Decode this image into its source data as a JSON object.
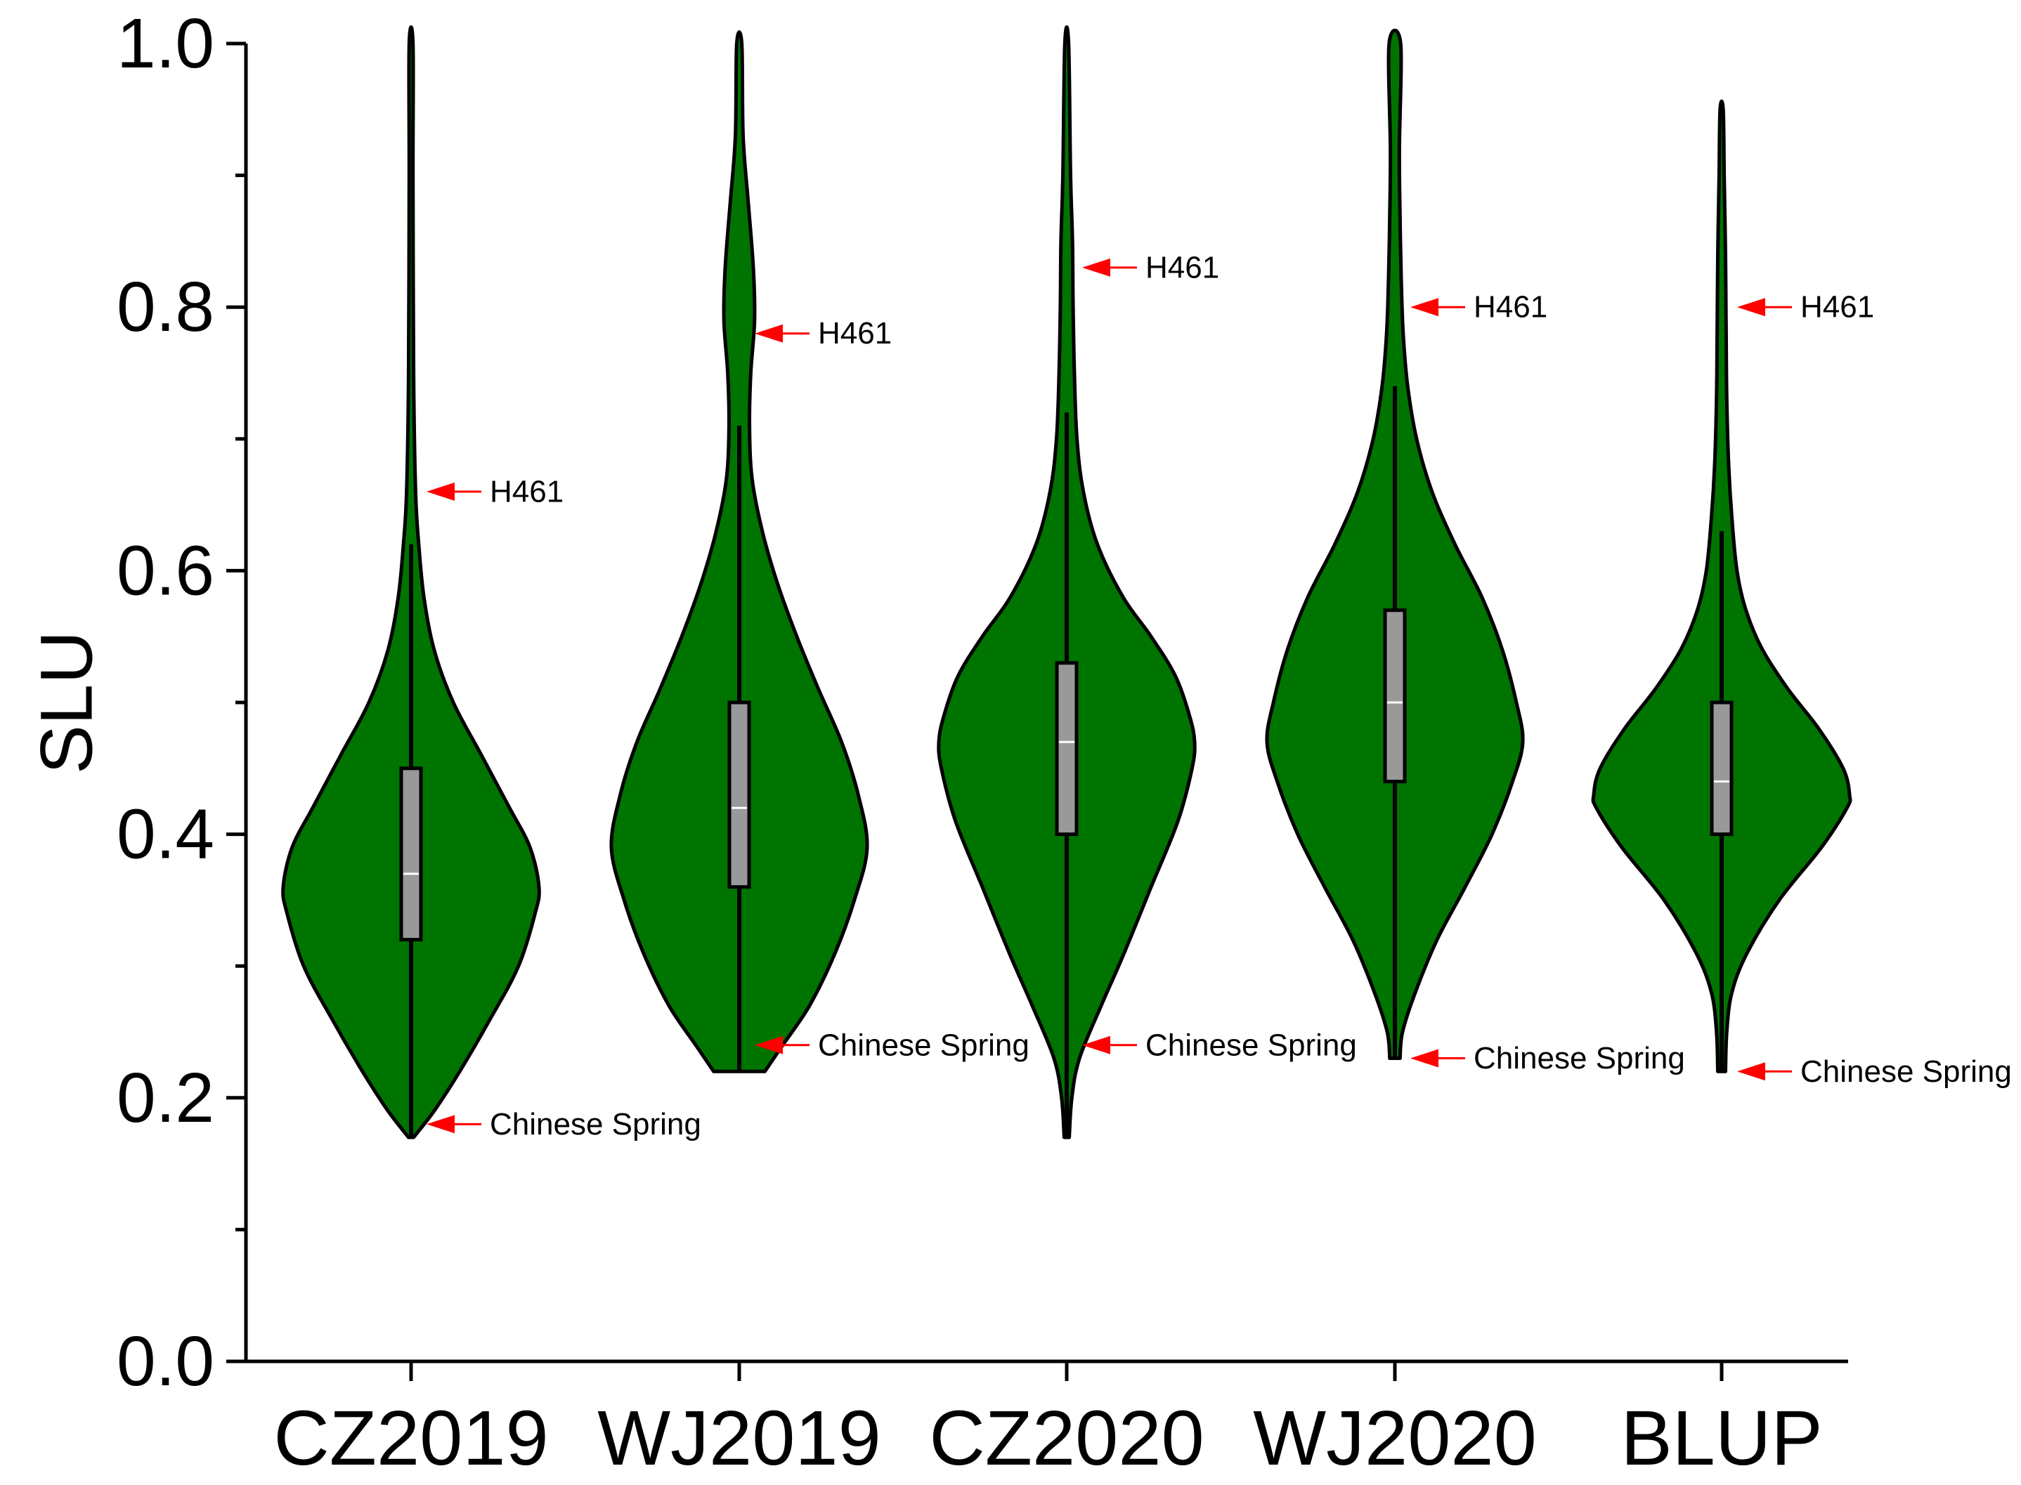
{
  "chart_data": {
    "type": "violin",
    "ylabel": "SLU",
    "xlabel": "",
    "ylim": [
      0,
      1
    ],
    "y_ticks": [
      "0.0",
      "0.2",
      "0.4",
      "0.6",
      "0.8",
      "1.0"
    ],
    "y_tick_values": [
      0,
      0.2,
      0.4,
      0.6,
      0.8,
      1.0
    ],
    "categories": [
      "CZ2019",
      "WJ2019",
      "CZ2020",
      "WJ2020",
      "BLUP"
    ],
    "colors": {
      "violin_fill": "#007400",
      "box_fill": "#999999",
      "arrow": "#ff0000",
      "median_line": "#ffffff"
    },
    "violins": [
      {
        "name": "CZ2019",
        "min": 0.17,
        "q1": 0.32,
        "median": 0.37,
        "q3": 0.45,
        "whisker_high": 0.62,
        "max": 1.0,
        "density_profile": [
          [
            0.17,
            0.02
          ],
          [
            0.19,
            0.18
          ],
          [
            0.22,
            0.38
          ],
          [
            0.26,
            0.62
          ],
          [
            0.3,
            0.84
          ],
          [
            0.34,
            0.97
          ],
          [
            0.36,
            1.0
          ],
          [
            0.39,
            0.93
          ],
          [
            0.42,
            0.77
          ],
          [
            0.46,
            0.55
          ],
          [
            0.5,
            0.33
          ],
          [
            0.54,
            0.18
          ],
          [
            0.58,
            0.1
          ],
          [
            0.62,
            0.06
          ],
          [
            0.66,
            0.035
          ],
          [
            0.75,
            0.02
          ],
          [
            0.9,
            0.015
          ],
          [
            1.0,
            0.015
          ]
        ],
        "annotations": [
          {
            "label": "H461",
            "value": 0.66
          },
          {
            "label": "Chinese Spring",
            "value": 0.18
          }
        ]
      },
      {
        "name": "WJ2019",
        "min": 0.22,
        "q1": 0.36,
        "median": 0.42,
        "q3": 0.5,
        "whisker_high": 0.71,
        "max": 1.0,
        "density_profile": [
          [
            0.22,
            0.2
          ],
          [
            0.24,
            0.34
          ],
          [
            0.27,
            0.55
          ],
          [
            0.31,
            0.75
          ],
          [
            0.35,
            0.9
          ],
          [
            0.39,
            1.0
          ],
          [
            0.43,
            0.93
          ],
          [
            0.47,
            0.8
          ],
          [
            0.51,
            0.62
          ],
          [
            0.55,
            0.45
          ],
          [
            0.59,
            0.3
          ],
          [
            0.63,
            0.18
          ],
          [
            0.67,
            0.1
          ],
          [
            0.71,
            0.08
          ],
          [
            0.75,
            0.09
          ],
          [
            0.79,
            0.12
          ],
          [
            0.83,
            0.11
          ],
          [
            0.88,
            0.07
          ],
          [
            0.93,
            0.03
          ],
          [
            1.0,
            0.02
          ]
        ],
        "annotations": [
          {
            "label": "H461",
            "value": 0.78
          },
          {
            "label": "Chinese Spring",
            "value": 0.24
          }
        ]
      },
      {
        "name": "CZ2020",
        "min": 0.17,
        "q1": 0.4,
        "median": 0.47,
        "q3": 0.53,
        "whisker_high": 0.72,
        "max": 1.0,
        "density_profile": [
          [
            0.17,
            0.02
          ],
          [
            0.2,
            0.04
          ],
          [
            0.23,
            0.1
          ],
          [
            0.27,
            0.27
          ],
          [
            0.31,
            0.45
          ],
          [
            0.36,
            0.66
          ],
          [
            0.41,
            0.87
          ],
          [
            0.45,
            0.98
          ],
          [
            0.47,
            1.0
          ],
          [
            0.49,
            0.96
          ],
          [
            0.52,
            0.85
          ],
          [
            0.55,
            0.66
          ],
          [
            0.58,
            0.44
          ],
          [
            0.62,
            0.24
          ],
          [
            0.66,
            0.13
          ],
          [
            0.7,
            0.08
          ],
          [
            0.75,
            0.06
          ],
          [
            0.8,
            0.05
          ],
          [
            0.85,
            0.045
          ],
          [
            0.9,
            0.03
          ],
          [
            1.0,
            0.015
          ]
        ],
        "annotations": [
          {
            "label": "H461",
            "value": 0.83
          },
          {
            "label": "Chinese Spring",
            "value": 0.24
          }
        ]
      },
      {
        "name": "WJ2020",
        "min": 0.23,
        "q1": 0.44,
        "median": 0.5,
        "q3": 0.57,
        "whisker_high": 0.74,
        "max": 1.0,
        "density_profile": [
          [
            0.23,
            0.04
          ],
          [
            0.25,
            0.06
          ],
          [
            0.28,
            0.16
          ],
          [
            0.32,
            0.33
          ],
          [
            0.36,
            0.55
          ],
          [
            0.4,
            0.76
          ],
          [
            0.44,
            0.92
          ],
          [
            0.47,
            1.0
          ],
          [
            0.5,
            0.95
          ],
          [
            0.54,
            0.84
          ],
          [
            0.58,
            0.68
          ],
          [
            0.62,
            0.47
          ],
          [
            0.66,
            0.29
          ],
          [
            0.7,
            0.17
          ],
          [
            0.74,
            0.1
          ],
          [
            0.78,
            0.065
          ],
          [
            0.82,
            0.05
          ],
          [
            0.87,
            0.04
          ],
          [
            0.92,
            0.035
          ],
          [
            1.0,
            0.045
          ]
        ],
        "annotations": [
          {
            "label": "H461",
            "value": 0.8
          },
          {
            "label": "Chinese Spring",
            "value": 0.23
          }
        ]
      },
      {
        "name": "BLUP",
        "min": 0.22,
        "q1": 0.4,
        "median": 0.44,
        "q3": 0.5,
        "whisker_high": 0.63,
        "max": 0.95,
        "density_profile": [
          [
            0.22,
            0.03
          ],
          [
            0.25,
            0.04
          ],
          [
            0.28,
            0.08
          ],
          [
            0.31,
            0.2
          ],
          [
            0.35,
            0.45
          ],
          [
            0.39,
            0.78
          ],
          [
            0.42,
            0.98
          ],
          [
            0.43,
            1.0
          ],
          [
            0.45,
            0.95
          ],
          [
            0.48,
            0.76
          ],
          [
            0.51,
            0.52
          ],
          [
            0.54,
            0.32
          ],
          [
            0.57,
            0.19
          ],
          [
            0.6,
            0.12
          ],
          [
            0.64,
            0.08
          ],
          [
            0.68,
            0.055
          ],
          [
            0.73,
            0.04
          ],
          [
            0.78,
            0.035
          ],
          [
            0.84,
            0.03
          ],
          [
            0.9,
            0.02
          ],
          [
            0.95,
            0.012
          ]
        ],
        "annotations": [
          {
            "label": "H461",
            "value": 0.8
          },
          {
            "label": "Chinese Spring",
            "value": 0.22
          }
        ]
      }
    ]
  }
}
